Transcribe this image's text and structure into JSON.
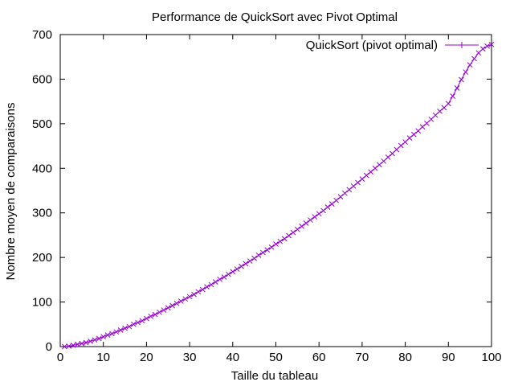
{
  "chart_data": {
    "type": "line",
    "title": "Performance de QuickSort avec Pivot Optimal",
    "xlabel": "Taille du tableau",
    "ylabel": "Nombre moyen de comparaisons",
    "xlim": [
      0,
      100
    ],
    "ylim": [
      0,
      700
    ],
    "xticks": [
      0,
      10,
      20,
      30,
      40,
      50,
      60,
      70,
      80,
      90,
      100
    ],
    "yticks": [
      0,
      100,
      200,
      300,
      400,
      500,
      600,
      700
    ],
    "grid": false,
    "legend_position": "top-right",
    "series": [
      {
        "name": "QuickSort (pivot optimal)",
        "color": "#9400d3",
        "marker": "plus",
        "x": [
          1,
          2,
          3,
          4,
          5,
          6,
          7,
          8,
          9,
          10,
          11,
          12,
          13,
          14,
          15,
          16,
          17,
          18,
          19,
          20,
          21,
          22,
          23,
          24,
          25,
          26,
          27,
          28,
          29,
          30,
          31,
          32,
          33,
          34,
          35,
          36,
          37,
          38,
          39,
          40,
          41,
          42,
          43,
          44,
          45,
          46,
          47,
          48,
          49,
          50,
          51,
          52,
          53,
          54,
          55,
          56,
          57,
          58,
          59,
          60,
          61,
          62,
          63,
          64,
          65,
          66,
          67,
          68,
          69,
          70,
          71,
          72,
          73,
          74,
          75,
          76,
          77,
          78,
          79,
          80,
          81,
          82,
          83,
          84,
          85,
          86,
          87,
          88,
          89,
          90,
          91,
          92,
          93,
          94,
          95,
          96,
          97,
          98,
          99,
          100
        ],
        "y": [
          0,
          1,
          3,
          5,
          7,
          9,
          12,
          15,
          18,
          22,
          26,
          29,
          33,
          37,
          41,
          45,
          50,
          54,
          58,
          63,
          68,
          72,
          77,
          82,
          87,
          92,
          97,
          102,
          107,
          112,
          117,
          123,
          128,
          134,
          139,
          145,
          151,
          156,
          162,
          168,
          174,
          180,
          186,
          192,
          198,
          205,
          211,
          217,
          223,
          230,
          236,
          242,
          249,
          256,
          263,
          270,
          277,
          284,
          291,
          298,
          305,
          313,
          320,
          328,
          336,
          344,
          352,
          360,
          368,
          376,
          384,
          392,
          400,
          408,
          416,
          425,
          433,
          442,
          451,
          459,
          468,
          476,
          484,
          493,
          501,
          510,
          519,
          528,
          536,
          545,
          562,
          580,
          599,
          616,
          632,
          646,
          659,
          668,
          674,
          678
        ]
      }
    ]
  }
}
